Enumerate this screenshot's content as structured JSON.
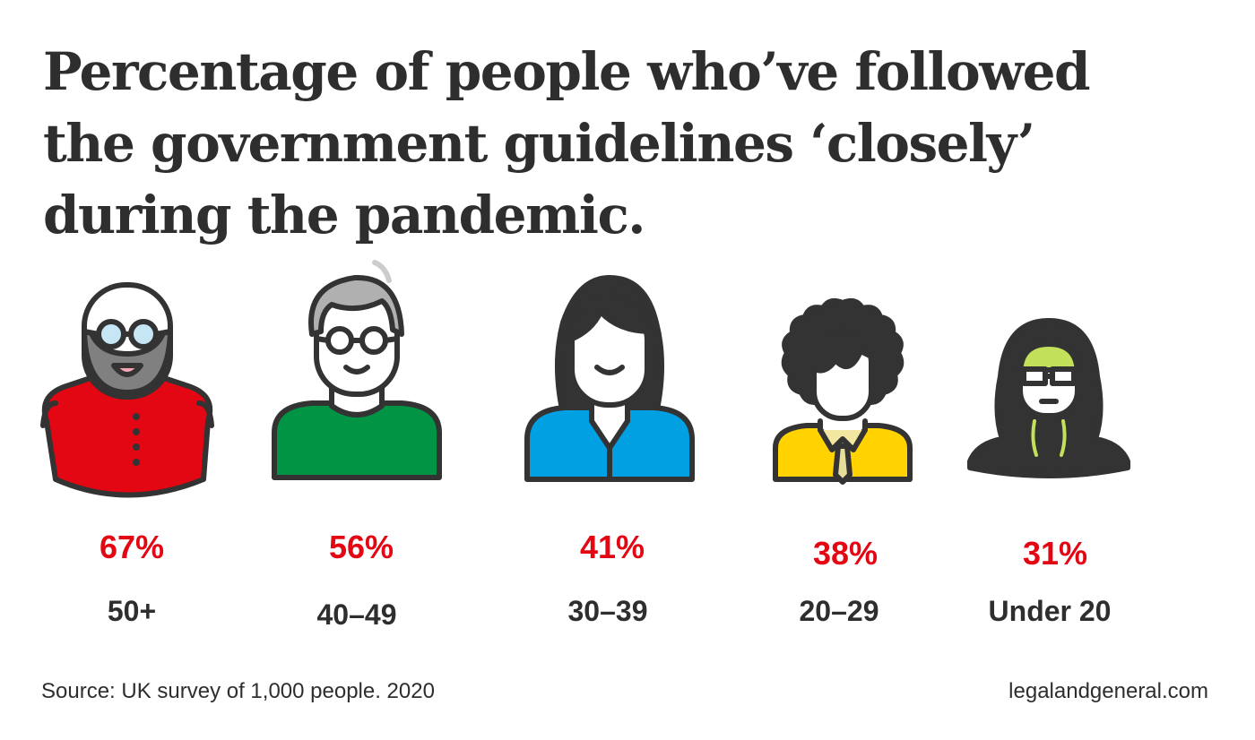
{
  "title_lines": [
    "Percentage of people who’ve followed",
    "the government guidelines ‘closely’",
    "during the pandemic."
  ],
  "chart_data": {
    "type": "bar",
    "title": "Percentage of people who’ve followed the government guidelines ‘closely’ during the pandemic.",
    "categories": [
      "50+",
      "40–49",
      "30–39",
      "20–29",
      "Under 20"
    ],
    "values": [
      67,
      56,
      41,
      38,
      31
    ],
    "value_labels": [
      "67%",
      "56%",
      "41%",
      "38%",
      "31%"
    ],
    "unit": "%",
    "icons": [
      "older-man-bearded-icon",
      "man-glasses-icon",
      "woman-icon",
      "young-man-curly-hair-icon",
      "teen-hoodie-icon"
    ],
    "colors": {
      "value_text": "#e30613",
      "label_text": "#2e2e2e",
      "red": "#e30613",
      "green": "#009444",
      "blue": "#00a0e3",
      "yellow": "#ffd200",
      "lime": "#c2e05a",
      "outline": "#333333"
    }
  },
  "footer": {
    "source": "Source: UK survey of 1,000 people. 2020",
    "site": "legalandgeneral.com"
  }
}
